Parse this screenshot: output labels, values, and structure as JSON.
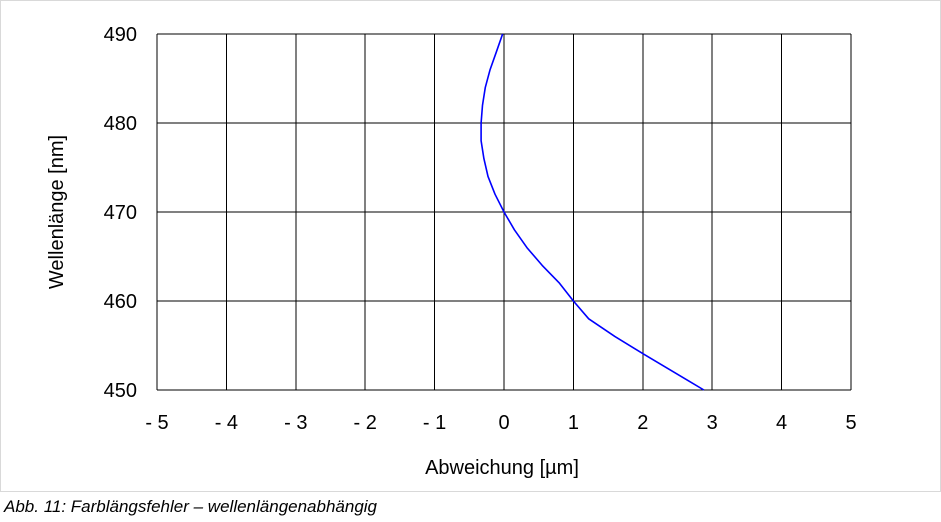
{
  "chart_data": {
    "type": "line",
    "title": "",
    "xlabel": "Abweichung [µm]",
    "ylabel": "Wellenlänge [nm]",
    "xlim": [
      -5,
      5
    ],
    "ylim": [
      450,
      490
    ],
    "x_ticks": [
      -5,
      -4,
      -3,
      -2,
      -1,
      0,
      1,
      2,
      3,
      4,
      5
    ],
    "x_tick_labels": [
      "- 5",
      "- 4",
      "- 3",
      "- 2",
      "- 1",
      "0",
      "1",
      "2",
      "3",
      "4",
      "5"
    ],
    "y_ticks": [
      450,
      460,
      470,
      480,
      490
    ],
    "y_tick_labels": [
      "450",
      "460",
      "470",
      "480",
      "490"
    ],
    "grid": true,
    "legend": "none",
    "series": [
      {
        "color": "#0000ff",
        "points": [
          {
            "x": 2.88,
            "y": 450
          },
          {
            "x": 2.45,
            "y": 452
          },
          {
            "x": 2.02,
            "y": 454
          },
          {
            "x": 1.6,
            "y": 456
          },
          {
            "x": 1.22,
            "y": 458
          },
          {
            "x": 1.0,
            "y": 460
          },
          {
            "x": 0.8,
            "y": 462
          },
          {
            "x": 0.55,
            "y": 464
          },
          {
            "x": 0.33,
            "y": 466
          },
          {
            "x": 0.15,
            "y": 468
          },
          {
            "x": 0.0,
            "y": 470
          },
          {
            "x": -0.13,
            "y": 472
          },
          {
            "x": -0.23,
            "y": 474
          },
          {
            "x": -0.29,
            "y": 476
          },
          {
            "x": -0.33,
            "y": 478
          },
          {
            "x": -0.33,
            "y": 480
          },
          {
            "x": -0.31,
            "y": 482
          },
          {
            "x": -0.27,
            "y": 484
          },
          {
            "x": -0.2,
            "y": 486
          },
          {
            "x": -0.11,
            "y": 488
          },
          {
            "x": -0.02,
            "y": 490
          }
        ]
      }
    ]
  },
  "caption": "Abb. 11: Farblängsfehler – wellenlängenabhängig"
}
